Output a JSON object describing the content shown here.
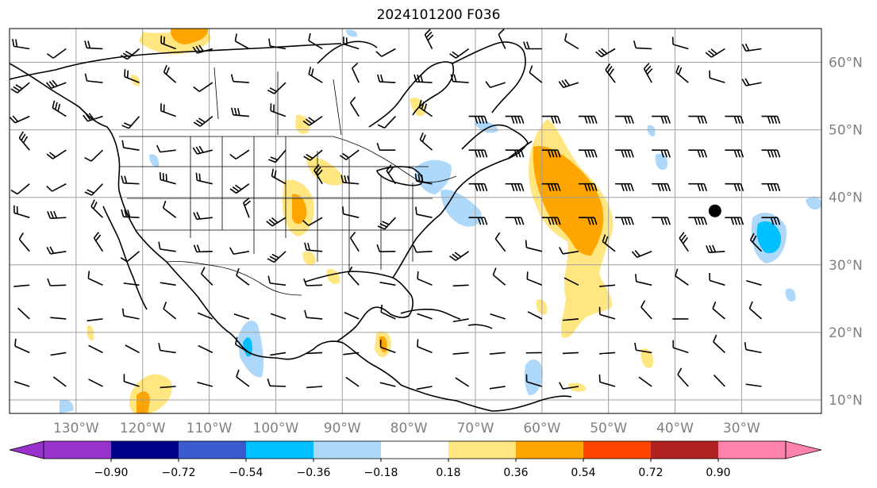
{
  "title": "2024101200 F036",
  "map": {
    "lon_range": [
      -140,
      -18
    ],
    "lat_range": [
      8,
      65
    ],
    "lon_labels": [
      {
        "lon": -130,
        "text": "130°W"
      },
      {
        "lon": -120,
        "text": "120°W"
      },
      {
        "lon": -110,
        "text": "110°W"
      },
      {
        "lon": -100,
        "text": "100°W"
      },
      {
        "lon": -90,
        "text": "90°W"
      },
      {
        "lon": -80,
        "text": "80°W"
      },
      {
        "lon": -70,
        "text": "70°W"
      },
      {
        "lon": -60,
        "text": "60°W"
      },
      {
        "lon": -50,
        "text": "50°W"
      },
      {
        "lon": -40,
        "text": "40°W"
      },
      {
        "lon": -30,
        "text": "30°W"
      }
    ],
    "lat_labels": [
      {
        "lat": 60,
        "text": "60°N"
      },
      {
        "lat": 50,
        "text": "50°N"
      },
      {
        "lat": 40,
        "text": "40°N"
      },
      {
        "lat": 30,
        "text": "30°N"
      },
      {
        "lat": 20,
        "text": "20°N"
      },
      {
        "lat": 10,
        "text": "10°N"
      }
    ],
    "gridline_color": "#a0a0a0",
    "coast_color": "#000000",
    "marker": {
      "lon": -34,
      "lat": 38
    }
  },
  "colorbar": {
    "colors": [
      "#9932cc",
      "#00008b",
      "#3a5bcd",
      "#00bfff",
      "#add8fa",
      "#ffffff",
      "#ffe680",
      "#ffa500",
      "#ff4500",
      "#b22222",
      "#ff82ab"
    ],
    "ticks": [
      "−0.90",
      "−0.72",
      "−0.54",
      "−0.36",
      "−0.18",
      "0.18",
      "0.36",
      "0.54",
      "0.72",
      "0.90"
    ]
  }
}
